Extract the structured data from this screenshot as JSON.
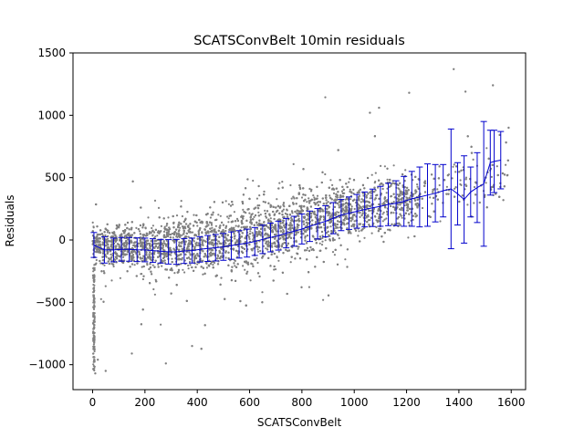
{
  "chart_data": {
    "type": "scatter",
    "title": "SCATSConvBelt 10min residuals",
    "xlabel": "SCATSConvBelt",
    "ylabel": "Residuals",
    "xlim": [
      -75,
      1655
    ],
    "ylim": [
      -1200,
      1500
    ],
    "xticks": [
      0,
      200,
      400,
      600,
      800,
      1000,
      1200,
      1400,
      1600
    ],
    "yticks": [
      -1000,
      -500,
      0,
      500,
      1000,
      1500
    ],
    "grid": false,
    "scatter_color": "#808080",
    "errorbar_color": "#0000cc",
    "scatter_band": [
      {
        "x": 0,
        "mean": -40,
        "spread": 120
      },
      {
        "x": 200,
        "mean": -70,
        "spread": 170
      },
      {
        "x": 400,
        "mean": -30,
        "spread": 210
      },
      {
        "x": 600,
        "mean": 40,
        "spread": 230
      },
      {
        "x": 800,
        "mean": 140,
        "spread": 220
      },
      {
        "x": 1000,
        "mean": 250,
        "spread": 200
      },
      {
        "x": 1200,
        "mean": 330,
        "spread": 190
      },
      {
        "x": 1400,
        "mean": 420,
        "spread": 200
      },
      {
        "x": 1580,
        "mean": 560,
        "spread": 200
      }
    ],
    "errorbars": {
      "x": [
        5,
        45,
        80,
        110,
        140,
        170,
        200,
        230,
        260,
        290,
        320,
        350,
        380,
        410,
        440,
        470,
        500,
        530,
        560,
        590,
        620,
        650,
        680,
        710,
        740,
        770,
        800,
        830,
        860,
        890,
        920,
        950,
        980,
        1010,
        1040,
        1070,
        1100,
        1130,
        1160,
        1190,
        1220,
        1250,
        1280,
        1310,
        1340,
        1370,
        1395,
        1420,
        1445,
        1470,
        1495,
        1520,
        1535,
        1560
      ],
      "mean": [
        -40,
        -80,
        -80,
        -75,
        -75,
        -78,
        -80,
        -85,
        -90,
        -95,
        -95,
        -88,
        -85,
        -75,
        -68,
        -62,
        -55,
        -45,
        -35,
        -25,
        -12,
        5,
        20,
        35,
        55,
        70,
        88,
        110,
        130,
        150,
        175,
        200,
        215,
        230,
        245,
        258,
        270,
        285,
        295,
        310,
        330,
        345,
        360,
        375,
        395,
        410,
        370,
        325,
        385,
        420,
        450,
        620,
        630,
        640
      ],
      "err": [
        100,
        105,
        95,
        95,
        95,
        95,
        95,
        95,
        95,
        98,
        100,
        100,
        100,
        102,
        104,
        106,
        108,
        110,
        110,
        112,
        112,
        114,
        115,
        116,
        118,
        120,
        120,
        122,
        122,
        125,
        125,
        125,
        130,
        135,
        140,
        150,
        160,
        170,
        180,
        200,
        220,
        240,
        250,
        230,
        210,
        480,
        250,
        350,
        200,
        280,
        500,
        260,
        250,
        230
      ]
    },
    "outliers": [
      {
        "x": 1380,
        "y": 1370
      },
      {
        "x": 1425,
        "y": 1190
      },
      {
        "x": 1530,
        "y": 1240
      },
      {
        "x": 1210,
        "y": 1180
      },
      {
        "x": 1095,
        "y": 1060
      },
      {
        "x": 1060,
        "y": 1020
      },
      {
        "x": 10,
        "y": -1070
      },
      {
        "x": 50,
        "y": -1050
      },
      {
        "x": 280,
        "y": -990
      },
      {
        "x": 150,
        "y": -910
      },
      {
        "x": 20,
        "y": -960
      },
      {
        "x": 1590,
        "y": 900
      },
      {
        "x": 1570,
        "y": 320
      },
      {
        "x": 1480,
        "y": 300
      },
      {
        "x": 380,
        "y": -850
      }
    ]
  }
}
